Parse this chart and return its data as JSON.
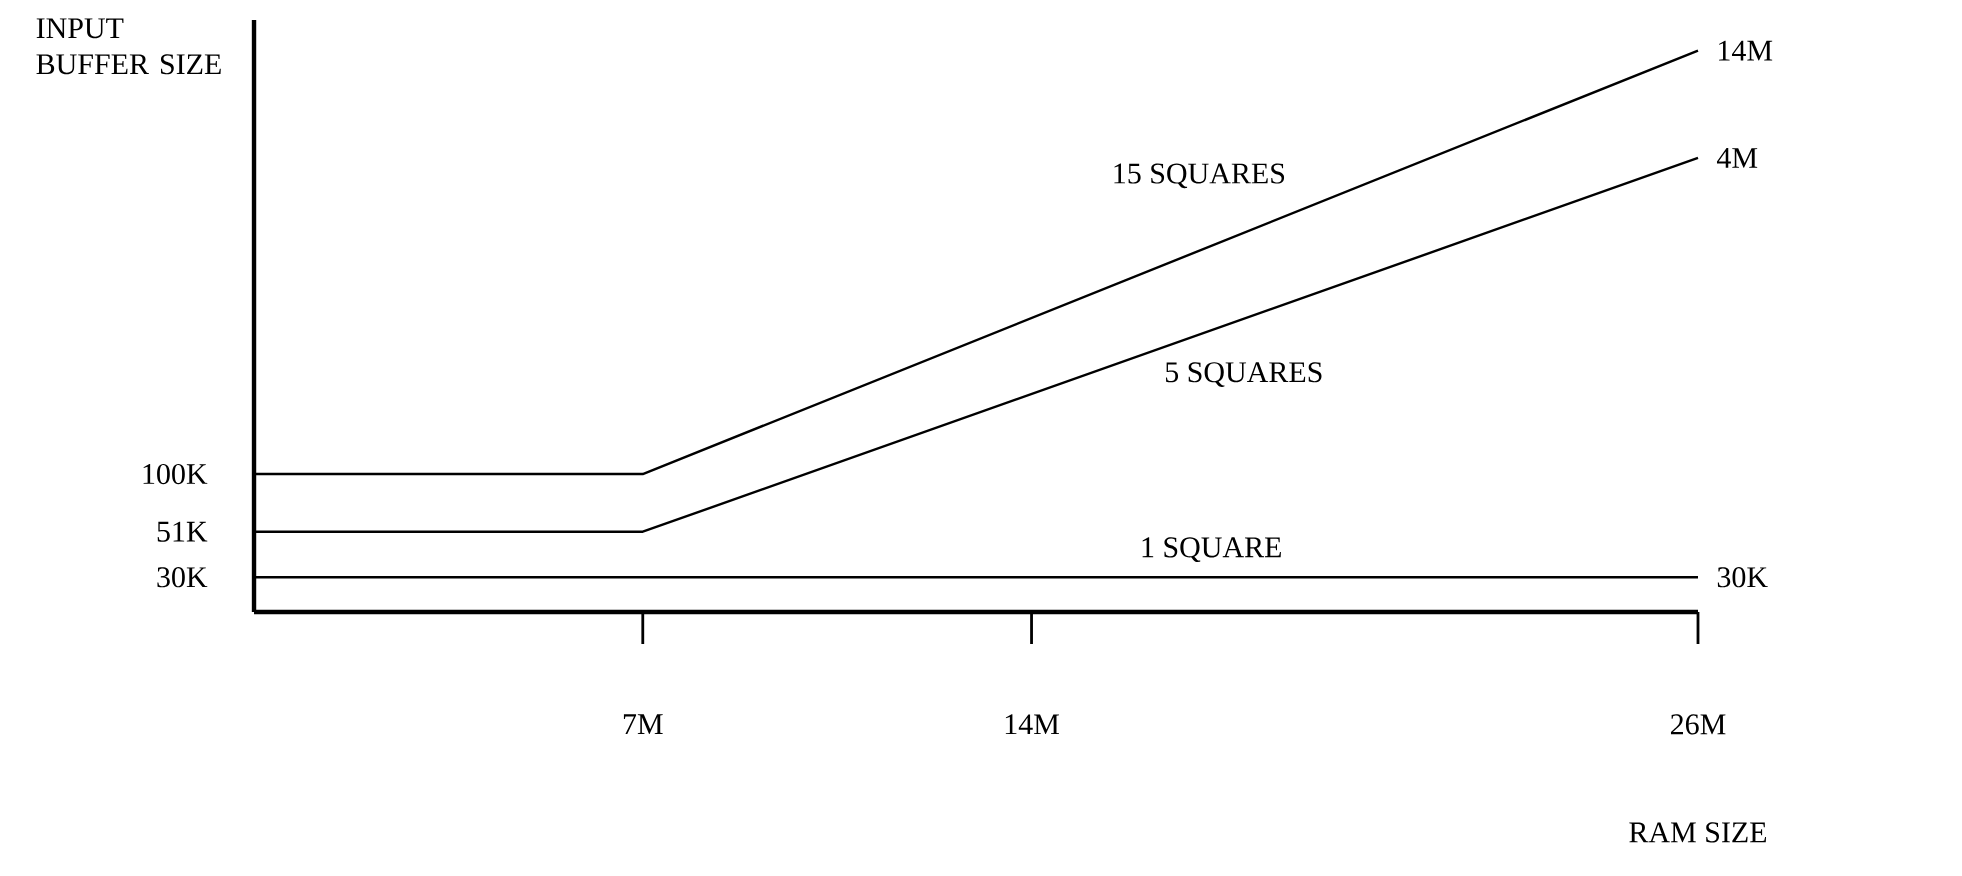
{
  "chart_data": {
    "type": "line",
    "xlabel": "RAM SIZE",
    "ylabel": "INPUT BUFFER SIZE",
    "log": "y",
    "xlim": [
      0,
      26
    ],
    "ylim": [
      20000,
      20000000
    ],
    "xticks": [
      {
        "value": 7,
        "label": "7M"
      },
      {
        "value": 14,
        "label": "14M"
      },
      {
        "value": 26,
        "label": "26M"
      }
    ],
    "yticks": [
      {
        "value": 30000,
        "label": "30K"
      },
      {
        "value": 51000,
        "label": "51K"
      },
      {
        "value": 100000,
        "label": "100K"
      }
    ],
    "grid": false,
    "marker": "none",
    "line_style": "solid",
    "series": [
      {
        "name": "15 SQUARES",
        "color": "#000000",
        "x": [
          0,
          7,
          26
        ],
        "values": [
          100000,
          100000,
          14000000
        ],
        "value_labels": [
          null,
          null,
          "14M"
        ]
      },
      {
        "name": "5 SQUARES",
        "color": "#000000",
        "x": [
          0,
          7,
          26
        ],
        "values": [
          51000,
          51000,
          4000000
        ],
        "value_labels": [
          null,
          null,
          "4M"
        ]
      },
      {
        "name": "1 SQUARE",
        "color": "#000000",
        "x": [
          0,
          7,
          26
        ],
        "values": [
          30000,
          30000,
          30000
        ],
        "value_labels": [
          null,
          null,
          "30K"
        ]
      }
    ]
  }
}
